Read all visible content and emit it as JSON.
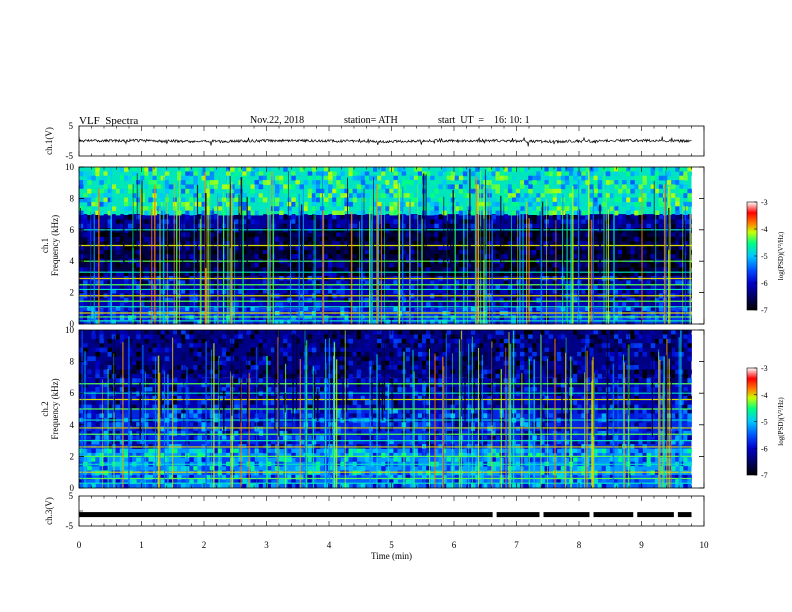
{
  "header": {
    "title": "VLF  Spectra",
    "date": "Nov.22, 2018",
    "station": "station= ATH",
    "start_ut": "start  UT  =    16: 10: 1"
  },
  "colors": {
    "colormap": [
      "#000000",
      "#000060",
      "#0000c8",
      "#0050ff",
      "#00c8ff",
      "#00ff80",
      "#c8ff00",
      "#ff8000",
      "#ff0000",
      "#ffffff"
    ]
  },
  "chart_data": [
    {
      "type": "line",
      "id": "ch1",
      "ylabel": "ch.1(V)",
      "ylim": [
        -5,
        5
      ],
      "yticks": [
        "5",
        "-5"
      ],
      "xlim": [
        0,
        10
      ],
      "x_end": 9.8,
      "description_level": "noisy waveform near 0 V, amplitude about ±0.5 V"
    },
    {
      "type": "heatmap",
      "id": "ch1-spectrogram",
      "ylabel_line1": "ch.1",
      "ylabel_line2": "Frequency (kHz)",
      "ylim": [
        0,
        10
      ],
      "yticks": [
        "0",
        "2",
        "4",
        "6",
        "8",
        "10"
      ],
      "xlim": [
        0,
        10
      ],
      "x_end": 9.8,
      "colorbar": {
        "label": "log(PSD)(V²/Hz)",
        "range": [
          -7,
          -3
        ],
        "ticks": [
          "-3",
          "-4",
          "-5",
          "-6",
          "-7"
        ]
      },
      "bands_log_psd": [
        {
          "range_khz": [
            7.0,
            10.0
          ],
          "level": -5.0
        },
        {
          "range_khz": [
            6.0,
            7.0
          ],
          "level": -6.3
        },
        {
          "range_khz": [
            3.0,
            6.0
          ],
          "level": -6.7
        },
        {
          "range_khz": [
            1.0,
            3.0
          ],
          "level": -6.2
        },
        {
          "range_khz": [
            0.0,
            1.0
          ],
          "level": -5.8
        }
      ],
      "lines_khz": [
        0.2,
        0.45,
        0.7,
        1.1,
        1.45,
        1.8,
        2.2,
        2.5,
        2.9,
        3.3,
        4.0,
        5.0,
        6.0
      ]
    },
    {
      "type": "heatmap",
      "id": "ch2-spectrogram",
      "ylabel_line1": "ch.2",
      "ylabel_line2": "Frequency (kHz)",
      "ylim": [
        0,
        10
      ],
      "yticks": [
        "0",
        "2",
        "4",
        "6",
        "8",
        "10"
      ],
      "xlim": [
        0,
        10
      ],
      "x_end": 9.8,
      "colorbar": {
        "label": "log(PSD)(V²/Hz)",
        "range": [
          -7,
          -3
        ],
        "ticks": [
          "-3",
          "-4",
          "-5",
          "-6",
          "-7"
        ]
      },
      "bands_log_psd": [
        {
          "range_khz": [
            7.0,
            10.0
          ],
          "level": -6.4
        },
        {
          "range_khz": [
            5.0,
            7.0
          ],
          "level": -6.2
        },
        {
          "range_khz": [
            2.5,
            5.0
          ],
          "level": -5.9
        },
        {
          "range_khz": [
            0.8,
            2.5
          ],
          "level": -5.4
        },
        {
          "range_khz": [
            0.0,
            0.8
          ],
          "level": -5.6
        }
      ],
      "lines_khz": [
        0.3,
        0.6,
        1.0,
        1.5,
        2.0,
        2.6,
        3.0,
        3.4,
        3.8,
        4.3,
        5.0,
        5.6,
        6.0,
        6.6
      ]
    },
    {
      "type": "line",
      "id": "ch3",
      "ylabel": "ch.3(V)",
      "ylim": [
        -5,
        5
      ],
      "yticks": [
        "5",
        "-5"
      ],
      "xlim": [
        0,
        10
      ],
      "x_end": 9.8,
      "level_v": -1.2,
      "gaps_min": [
        6.65,
        7.4,
        8.2,
        8.9,
        9.55
      ]
    }
  ],
  "xaxis": {
    "label": "Time  (min)",
    "ticks": [
      "0",
      "1",
      "2",
      "3",
      "4",
      "5",
      "6",
      "7",
      "8",
      "9",
      "10"
    ]
  }
}
